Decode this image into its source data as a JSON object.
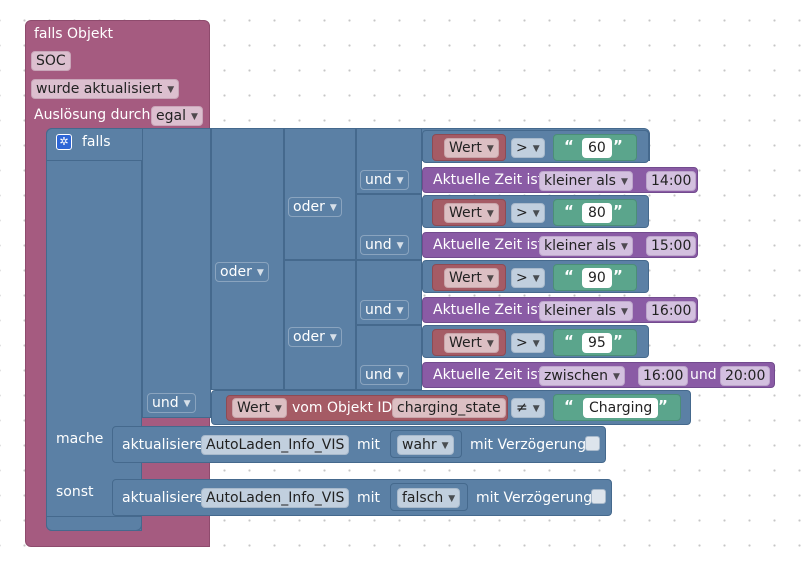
{
  "trigger": {
    "title": "falls Objekt",
    "object_id": "SOC",
    "event": "wurde aktualisiert",
    "trigger_label": "Auslösung durch",
    "trigger_value": "egal"
  },
  "if_block": {
    "if_label": "falls",
    "do_label": "mache",
    "else_label": "sonst",
    "and_label": "und",
    "or_label": "oder",
    "outer_or_label": "oder"
  },
  "conditions": [
    {
      "var": "Wert",
      "op": ">",
      "value": "60"
    },
    {
      "time_label": "Aktuelle Zeit ist",
      "time_op": "kleiner als",
      "time": "14:00",
      "and_label": "und"
    },
    {
      "var": "Wert",
      "op": ">",
      "value": "80"
    },
    {
      "time_label": "Aktuelle Zeit ist",
      "time_op": "kleiner als",
      "time": "15:00",
      "and_label": "und"
    },
    {
      "var": "Wert",
      "op": ">",
      "value": "90"
    },
    {
      "time_label": "Aktuelle Zeit ist",
      "time_op": "kleiner als",
      "time": "16:00",
      "and_label": "und"
    },
    {
      "var": "Wert",
      "op": ">",
      "value": "95"
    },
    {
      "time_label": "Aktuelle Zeit ist",
      "time_op": "zwischen",
      "time": "16:00",
      "time_and": "und",
      "time2": "20:00",
      "and_label": "und"
    }
  ],
  "or_labels": [
    "oder",
    "oder",
    "oder"
  ],
  "state_check": {
    "and_label": "und",
    "var": "Wert",
    "mid_label": "vom Objekt ID",
    "object_id": "charging_state",
    "op": "≠",
    "value": "Charging"
  },
  "do_action": {
    "label": "aktualisiere",
    "object": "AutoLaden_Info_VIS",
    "with_label": "mit",
    "value": "wahr",
    "delay_label": "mit Verzögerung"
  },
  "else_action": {
    "label": "aktualisiere",
    "object": "AutoLaden_Info_VIS",
    "with_label": "mit",
    "value": "falsch",
    "delay_label": "mit Verzögerung"
  },
  "colors": {
    "trigger": "#a55b80",
    "logic": "#5b80a5",
    "variable": "#a55b65",
    "text": "#5ba58c",
    "time": "#8a5ba5"
  }
}
